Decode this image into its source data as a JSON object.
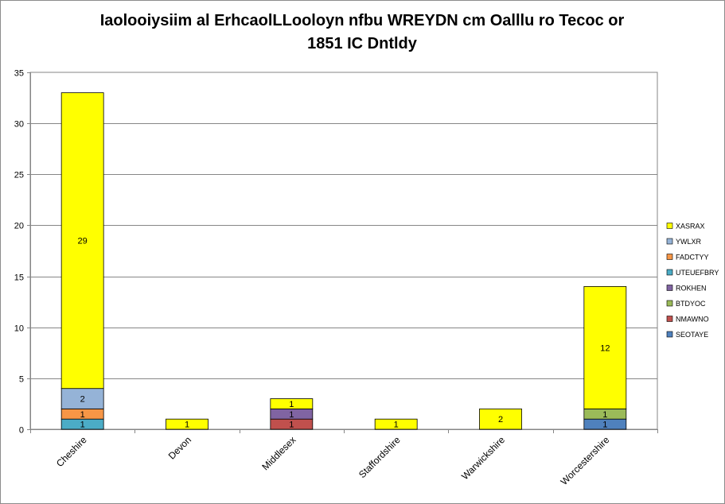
{
  "chart_data": {
    "type": "stacked-bar",
    "title_line1": "Iaolooiysiim al ErhcaolLLooloyn nfbu WREYDN cm Oalllu ro Tecoc or",
    "title_line2": "1851 IC Dntldy",
    "categories": [
      "Cheshire",
      "Devon",
      "Middlesex",
      "Staffordshire",
      "Warwickshire",
      "Worcestershire"
    ],
    "ylim": [
      0,
      35
    ],
    "yticks": [
      0,
      5,
      10,
      15,
      20,
      25,
      30,
      35
    ],
    "grid": true,
    "legend_position": "right",
    "series": [
      {
        "name": "SEOTAYE",
        "color": "#4f81bd",
        "values": [
          0,
          0,
          0,
          0,
          0,
          1
        ]
      },
      {
        "name": "NMAWNO",
        "color": "#c0504d",
        "values": [
          0,
          0,
          1,
          0,
          0,
          0
        ]
      },
      {
        "name": "BTDYOC",
        "color": "#9bbb59",
        "values": [
          0,
          0,
          0,
          0,
          0,
          1
        ]
      },
      {
        "name": "ROKHEN",
        "color": "#8064a2",
        "values": [
          0,
          0,
          1,
          0,
          0,
          0
        ]
      },
      {
        "name": "UTEUEFBRY",
        "color": "#4bacc6",
        "values": [
          1,
          0,
          0,
          0,
          0,
          0
        ]
      },
      {
        "name": "FADCTYY",
        "color": "#f79646",
        "values": [
          1,
          0,
          0,
          0,
          0,
          0
        ]
      },
      {
        "name": "YWLXR",
        "color": "#95b3d7",
        "values": [
          2,
          0,
          0,
          0,
          0,
          0
        ]
      },
      {
        "name": "XASRAX",
        "color": "#ffff00",
        "values": [
          29,
          1,
          1,
          1,
          2,
          12
        ]
      }
    ]
  }
}
